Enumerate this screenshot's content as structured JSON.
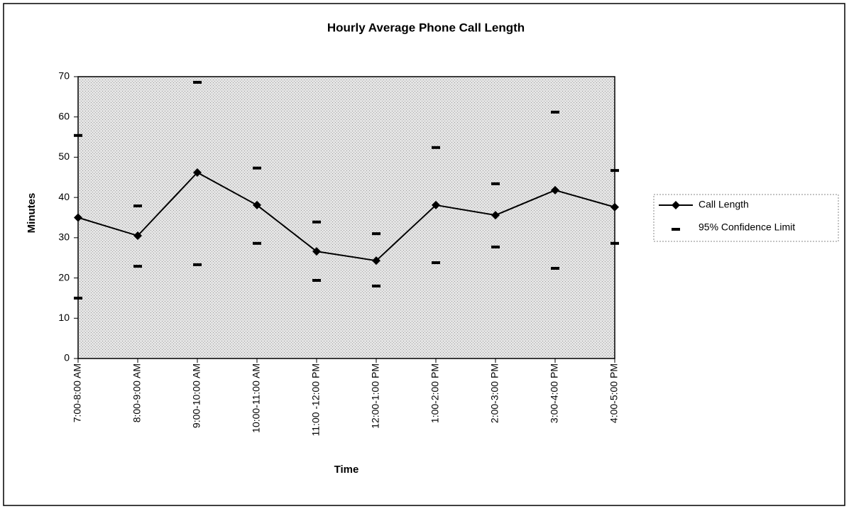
{
  "chart_data": {
    "type": "line",
    "title": "Hourly Average Phone Call Length",
    "x_label": "Time",
    "y_label": "Minutes",
    "categories": [
      "7:00-8:00 AM",
      "8:00-9:00 AM",
      "9:00-10:00 AM",
      "10:00-11:00 AM",
      "11:00 -12:00 PM",
      "12:00-1:00 PM",
      "1:00-2:00 PM",
      "2:00-3:00 PM",
      "3:00-4:00 PM",
      "4:00-5:00 PM"
    ],
    "series": [
      {
        "name": "Call Length",
        "color": "#000000",
        "values": [
          35,
          30.5,
          46.2,
          38.1,
          26.6,
          24.3,
          38.1,
          35.6,
          41.8,
          37.6
        ]
      },
      {
        "name": "95% Confidence Limit",
        "color": "#000000",
        "upper": [
          55.4,
          37.9,
          68.6,
          47.3,
          33.9,
          31,
          52.4,
          43.4,
          61.2,
          46.7
        ],
        "lower": [
          15,
          22.9,
          23.3,
          28.6,
          19.4,
          18,
          23.8,
          27.7,
          22.4,
          28.6
        ]
      }
    ],
    "ylim": [
      0,
      70
    ],
    "yticks": [
      0,
      10,
      20,
      30,
      40,
      50,
      60,
      70
    ],
    "grid": false
  }
}
